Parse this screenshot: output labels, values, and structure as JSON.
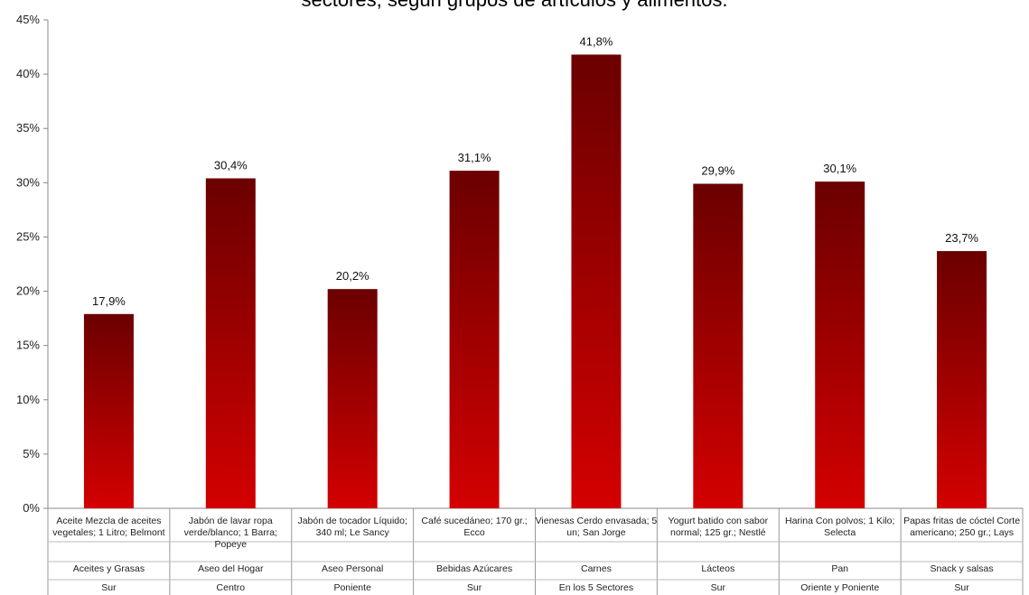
{
  "chart_data": {
    "type": "bar",
    "title": "sectores, según grupos de artículos y alimentos.",
    "ylim": [
      0,
      45
    ],
    "yticks": [
      "0%",
      "5%",
      "10%",
      "15%",
      "20%",
      "25%",
      "30%",
      "35%",
      "40%",
      "45%"
    ],
    "grid": false,
    "legend": "none",
    "categories": [
      {
        "product": [
          "Aceite Mezcla de aceites",
          "vegetales; 1 Litro; Belmont"
        ],
        "group": "Aceites y Grasas",
        "sector": "Sur"
      },
      {
        "product": [
          "Jabón de lavar ropa",
          "verde/blanco; 1 Barra;",
          "Popeye"
        ],
        "group": "Aseo del Hogar",
        "sector": "Centro"
      },
      {
        "product": [
          "Jabón de tocador Líquido;",
          "340 ml; Le Sancy"
        ],
        "group": "Aseo Personal",
        "sector": "Poniente"
      },
      {
        "product": [
          "Café sucedáneo; 170 gr.;",
          "Ecco"
        ],
        "group": "Bebidas Azúcares",
        "sector": "Sur"
      },
      {
        "product": [
          "Vienesas Cerdo envasada; 5",
          "un; San Jorge"
        ],
        "group": "Carnes",
        "sector": "En los 5 Sectores"
      },
      {
        "product": [
          "Yogurt  batido  con sabor",
          "normal; 125 gr.; Nestlé"
        ],
        "group": "Lácteos",
        "sector": "Sur"
      },
      {
        "product": [
          "Harina Con polvos; 1 Kilo;",
          "Selecta"
        ],
        "group": "Pan",
        "sector": "Oriente y Poniente"
      },
      {
        "product": [
          "Papas fritas de cóctel Corte",
          "americano; 250 gr.; Lays"
        ],
        "group": "Snack y salsas",
        "sector": "Sur"
      }
    ],
    "values": [
      17.9,
      30.4,
      20.2,
      31.1,
      41.8,
      29.9,
      30.1,
      23.7
    ],
    "data_labels": [
      "17,9%",
      "30,4%",
      "20,2%",
      "31,1%",
      "41,8%",
      "29,9%",
      "30,1%",
      "23,7%"
    ],
    "bar_color_top": "#6b0000",
    "bar_color_bottom": "#d40000"
  }
}
